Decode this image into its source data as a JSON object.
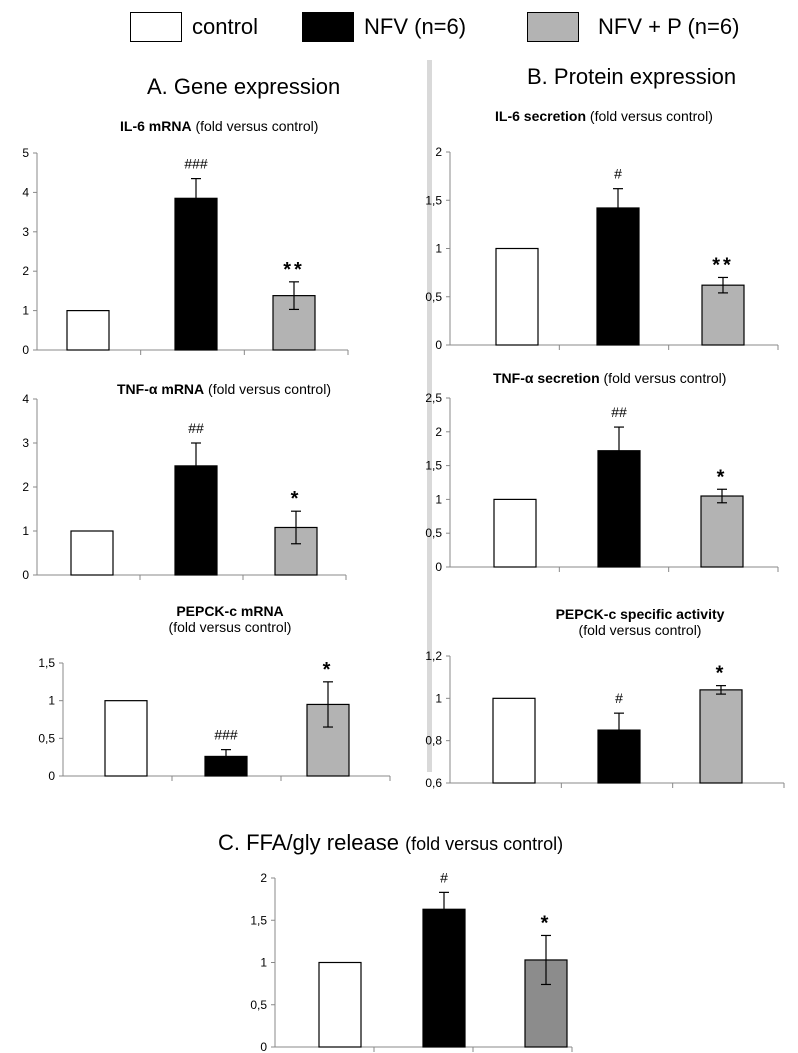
{
  "legend": {
    "control": "control",
    "nfv": "NFV (n=6)",
    "nfvp": "NFV + P (n=6)"
  },
  "colors": {
    "control": "#ffffff",
    "nfv": "#000000",
    "nfvp": "#b3b3b3",
    "nfvp_c": "#8c8c8c"
  },
  "sections": {
    "a": "A. Gene expression",
    "b": "B. Protein expression",
    "c_main": "C. FFA/gly release ",
    "c_sub": "(fold versus control)"
  },
  "chart_data": [
    {
      "id": "il6-mrna",
      "type": "bar",
      "title_bold": "IL-6 mRNA",
      "title_normal": "  (fold versus control)",
      "title_line2": "",
      "categories": [
        "control",
        "NFV (n=6)",
        "NFV + P (n=6)"
      ],
      "values": [
        1,
        3.85,
        1.38
      ],
      "errors": [
        0,
        0.5,
        0.35
      ],
      "annotations": [
        "",
        "###",
        "**"
      ],
      "ylim": [
        0,
        5
      ],
      "yticks": [
        "0",
        "1",
        "2",
        "3",
        "4",
        "5"
      ],
      "ytick_values": [
        0,
        1,
        2,
        3,
        4,
        5
      ]
    },
    {
      "id": "tnf-mrna",
      "type": "bar",
      "title_bold": "TNF-α mRNA",
      "title_normal": " (fold versus control)",
      "title_line2": "",
      "categories": [
        "control",
        "NFV (n=6)",
        "NFV + P (n=6)"
      ],
      "values": [
        1,
        2.48,
        1.08
      ],
      "errors": [
        0,
        0.52,
        0.37
      ],
      "annotations": [
        "",
        "##",
        "*"
      ],
      "ylim": [
        0,
        4
      ],
      "yticks": [
        "0",
        "1",
        "2",
        "3",
        "4"
      ],
      "ytick_values": [
        0,
        1,
        2,
        3,
        4
      ]
    },
    {
      "id": "pepck-mrna",
      "type": "bar",
      "title_bold": "PEPCK-c mRNA",
      "title_normal": "",
      "title_line2": "(fold versus control)",
      "categories": [
        "control",
        "NFV (n=6)",
        "NFV + P (n=6)"
      ],
      "values": [
        1,
        0.26,
        0.95
      ],
      "errors": [
        0,
        0.09,
        0.3
      ],
      "annotations": [
        "",
        "###",
        "*"
      ],
      "ylim": [
        0,
        1.5
      ],
      "yticks": [
        "0",
        "0,5",
        "1",
        "1,5"
      ],
      "ytick_values": [
        0,
        0.5,
        1,
        1.5
      ]
    },
    {
      "id": "il6-secretion",
      "type": "bar",
      "title_bold": "IL-6 secretion",
      "title_normal": " (fold versus control)",
      "title_line2": "",
      "categories": [
        "control",
        "NFV (n=6)",
        "NFV + P (n=6)"
      ],
      "values": [
        1,
        1.42,
        0.62
      ],
      "errors": [
        0,
        0.2,
        0.08
      ],
      "annotations": [
        "",
        "#",
        "**"
      ],
      "ylim": [
        0,
        2
      ],
      "yticks": [
        "0",
        "0,5",
        "1",
        "1,5",
        "2"
      ],
      "ytick_values": [
        0,
        0.5,
        1,
        1.5,
        2
      ]
    },
    {
      "id": "tnf-secretion",
      "type": "bar",
      "title_bold": "TNF-α secretion",
      "title_normal": " (fold versus control)",
      "title_line2": "",
      "categories": [
        "control",
        "NFV (n=6)",
        "NFV + P (n=6)"
      ],
      "values": [
        1,
        1.72,
        1.05
      ],
      "errors": [
        0,
        0.35,
        0.1
      ],
      "annotations": [
        "",
        "##",
        "*"
      ],
      "ylim": [
        0,
        2.5
      ],
      "yticks": [
        "0",
        "0,5",
        "1",
        "1,5",
        "2",
        "2,5"
      ],
      "ytick_values": [
        0,
        0.5,
        1,
        1.5,
        2,
        2.5
      ]
    },
    {
      "id": "pepck-activity",
      "type": "bar",
      "title_bold": "PEPCK-c specific activity",
      "title_normal": "",
      "title_line2": "(fold versus control)",
      "categories": [
        "control",
        "NFV (n=6)",
        "NFV + P (n=6)"
      ],
      "values": [
        1,
        0.85,
        1.04
      ],
      "errors": [
        0,
        0.08,
        0.02
      ],
      "annotations": [
        "",
        "#",
        "*"
      ],
      "ylim": [
        0.6,
        1.2
      ],
      "yticks": [
        "0,6",
        "0,8",
        "1",
        "1,2"
      ],
      "ytick_values": [
        0.6,
        0.8,
        1,
        1.2
      ]
    },
    {
      "id": "ffa-release",
      "type": "bar",
      "title_bold": "",
      "title_normal": "",
      "title_line2": "",
      "categories": [
        "control",
        "NFV (n=6)",
        "NFV + P (n=6)"
      ],
      "values": [
        1,
        1.63,
        1.03
      ],
      "errors": [
        0,
        0.2,
        0.29
      ],
      "annotations": [
        "",
        "#",
        "*"
      ],
      "ylim": [
        0,
        2
      ],
      "yticks": [
        "0",
        "0,5",
        "1",
        "1,5",
        "2"
      ],
      "ytick_values": [
        0,
        0.5,
        1,
        1.5,
        2
      ]
    }
  ]
}
